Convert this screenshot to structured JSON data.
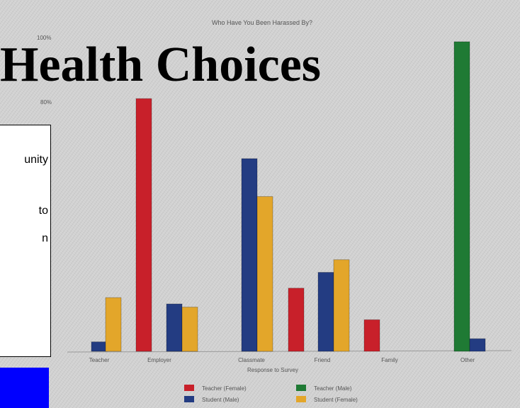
{
  "slide": {
    "title": "Health Choices",
    "text_box_fragments": [
      "unity",
      "to",
      "n"
    ]
  },
  "chart_data": {
    "type": "bar",
    "title": "Who Have You Been Harassed By?",
    "xlabel": "Response to Survey",
    "ylabel": "",
    "categories": [
      "Teacher",
      "Employer",
      "Classmate",
      "Friend",
      "Family",
      "Other"
    ],
    "yticks": [
      "100%",
      "80%"
    ],
    "ylim": [
      0,
      100
    ],
    "series": [
      {
        "name": "Teacher (Female)",
        "color": "#c8202a",
        "values": [
          0,
          80,
          0,
          20,
          10,
          0
        ]
      },
      {
        "name": "Student (Male)",
        "color": "#233c82",
        "values": [
          3,
          15,
          61,
          25,
          0,
          4
        ]
      },
      {
        "name": "Teacher (Male)",
        "color": "#1f7a34",
        "values": [
          0,
          0,
          0,
          0,
          0,
          98
        ]
      },
      {
        "name": "Student (Female)",
        "color": "#e3a62a",
        "values": [
          17,
          14,
          49,
          29,
          0,
          0
        ]
      }
    ],
    "legend": "bottom-center"
  }
}
